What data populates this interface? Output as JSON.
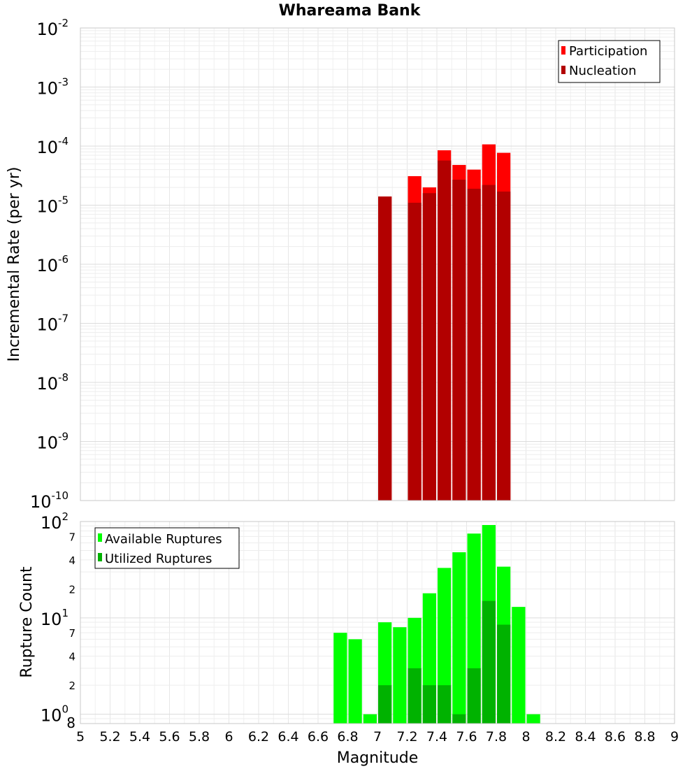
{
  "chart_data": [
    {
      "type": "bar",
      "title": "Whareama Bank",
      "ylabel": "Incremental Rate (per yr)",
      "yscale": "log",
      "ylim": [
        1e-10,
        0.01
      ],
      "xlim": [
        5,
        9
      ],
      "grid": true,
      "legend_position": "top-right",
      "y_tick_labels": [
        {
          "value": 1e-10,
          "base": "10",
          "exp": "-10"
        },
        {
          "value": 1e-09,
          "base": "10",
          "exp": "-9"
        },
        {
          "value": 1e-08,
          "base": "10",
          "exp": "-8"
        },
        {
          "value": 1e-07,
          "base": "10",
          "exp": "-7"
        },
        {
          "value": 1e-06,
          "base": "10",
          "exp": "-6"
        },
        {
          "value": 1e-05,
          "base": "10",
          "exp": "-5"
        },
        {
          "value": 0.0001,
          "base": "10",
          "exp": "-4"
        },
        {
          "value": 0.001,
          "base": "10",
          "exp": "-3"
        },
        {
          "value": 0.01,
          "base": "10",
          "exp": "-2"
        }
      ],
      "series": [
        {
          "name": "Participation",
          "color": "#ff0000",
          "x": [
            7.05,
            7.25,
            7.35,
            7.45,
            7.55,
            7.65,
            7.75,
            7.85
          ],
          "values": [
            1.4e-05,
            3.1e-05,
            2e-05,
            8.5e-05,
            4.8e-05,
            4e-05,
            0.000107,
            7.7e-05
          ]
        },
        {
          "name": "Nucleation",
          "color": "#b20000",
          "x": [
            7.05,
            7.25,
            7.35,
            7.45,
            7.55,
            7.65,
            7.75,
            7.85
          ],
          "values": [
            1.4e-05,
            1.1e-05,
            1.6e-05,
            5.7e-05,
            2.7e-05,
            1.9e-05,
            2.2e-05,
            1.7e-05
          ]
        }
      ]
    },
    {
      "type": "bar",
      "xlabel": "Magnitude",
      "ylabel": "Rupture Count",
      "yscale": "log",
      "ylim": [
        0.8,
        100
      ],
      "xlim": [
        5,
        9
      ],
      "grid": true,
      "legend_position": "top-left",
      "x_ticks": [
        "5",
        "5.2",
        "5.4",
        "5.6",
        "5.8",
        "6",
        "6.2",
        "6.4",
        "6.6",
        "6.8",
        "7",
        "7.2",
        "7.4",
        "7.6",
        "7.8",
        "8",
        "8.2",
        "8.4",
        "8.6",
        "8.8",
        "9"
      ],
      "y_tick_labels": [
        {
          "value": 1,
          "base": "10",
          "exp": "0"
        },
        {
          "value": 10,
          "base": "10",
          "exp": "1"
        },
        {
          "value": 100,
          "base": "10",
          "exp": "2"
        }
      ],
      "y_minor_labels": [
        {
          "value": 0.8,
          "label": "8"
        },
        {
          "value": 2,
          "label": "2"
        },
        {
          "value": 4,
          "label": "4"
        },
        {
          "value": 7,
          "label": "7"
        },
        {
          "value": 20,
          "label": "2"
        },
        {
          "value": 40,
          "label": "4"
        },
        {
          "value": 70,
          "label": "7"
        }
      ],
      "series": [
        {
          "name": "Available Ruptures",
          "color": "#00ff00",
          "x": [
            6.75,
            6.85,
            6.95,
            7.05,
            7.15,
            7.25,
            7.35,
            7.45,
            7.55,
            7.65,
            7.75,
            7.85,
            7.95,
            8.05
          ],
          "values": [
            7,
            6,
            1,
            9,
            8,
            10,
            18,
            33,
            48,
            75,
            92,
            34,
            13,
            1
          ]
        },
        {
          "name": "Utilized Ruptures",
          "color": "#00b200",
          "x": [
            7.05,
            7.25,
            7.35,
            7.45,
            7.55,
            7.65,
            7.75,
            7.85
          ],
          "values": [
            2,
            3,
            2,
            2,
            1,
            3,
            15,
            8.5
          ]
        }
      ]
    }
  ]
}
